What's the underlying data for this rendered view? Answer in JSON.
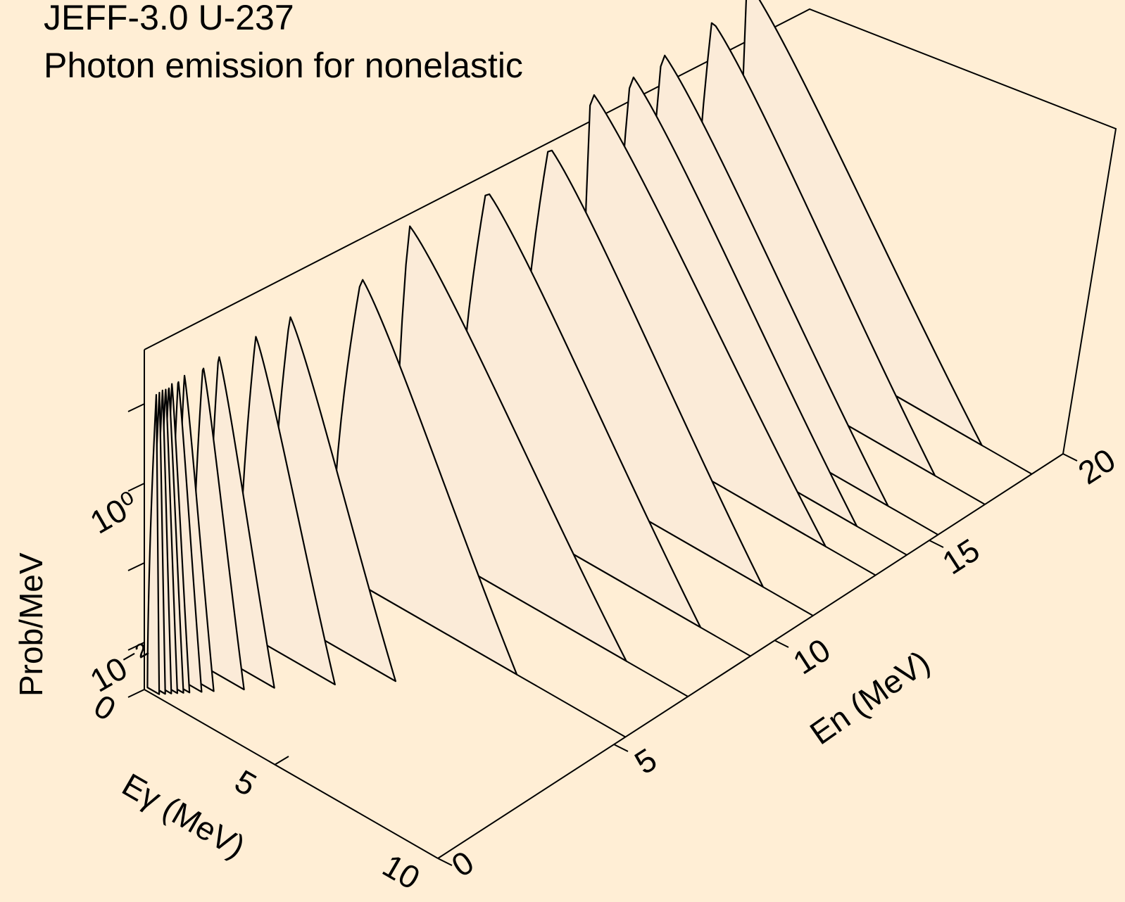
{
  "title_line1": "JEFF-3.0 U-237",
  "title_line2": "Photon emission for nonelastic",
  "colors": {
    "background": "#FFEED5",
    "fill": "#FBEBD8",
    "line": "#000000"
  },
  "chart_data": {
    "type": "3d-waterfall",
    "title": "JEFF-3.0 U-237 Photon emission for nonelastic",
    "x_axis": {
      "label": "Eγ (MeV)",
      "range": [
        0,
        10
      ],
      "ticks": [
        "0",
        "5",
        "10"
      ]
    },
    "y_axis": {
      "label": "En (MeV)",
      "range": [
        0,
        20
      ],
      "ticks": [
        "0",
        "5",
        "10",
        "15",
        "20"
      ]
    },
    "z_axis": {
      "label": "Prob/MeV",
      "scale": "log",
      "ticks": [
        "10⁻²",
        "10⁰"
      ]
    },
    "series": [
      {
        "en": 0.1,
        "peak_egamma": 0.3,
        "max_egamma": 0.4
      },
      {
        "en": 0.2,
        "peak_egamma": 0.3,
        "max_egamma": 0.5
      },
      {
        "en": 0.3,
        "peak_egamma": 0.3,
        "max_egamma": 0.6
      },
      {
        "en": 0.4,
        "peak_egamma": 0.3,
        "max_egamma": 0.7
      },
      {
        "en": 0.5,
        "peak_egamma": 0.3,
        "max_egamma": 0.8
      },
      {
        "en": 0.6,
        "peak_egamma": 0.3,
        "max_egamma": 0.9
      },
      {
        "en": 0.8,
        "peak_egamma": 0.3,
        "max_egamma": 1.1
      },
      {
        "en": 1.0,
        "peak_egamma": 0.3,
        "max_egamma": 1.3
      },
      {
        "en": 1.5,
        "peak_egamma": 0.4,
        "max_egamma": 1.8
      },
      {
        "en": 2.0,
        "peak_egamma": 0.4,
        "max_egamma": 2.3
      },
      {
        "en": 3.0,
        "peak_egamma": 0.6,
        "max_egamma": 3.3
      },
      {
        "en": 4.0,
        "peak_egamma": 0.7,
        "max_egamma": 4.3
      },
      {
        "en": 6.0,
        "peak_egamma": 1.0,
        "max_egamma": 6.3
      },
      {
        "en": 8.0,
        "peak_egamma": 0.5,
        "max_egamma": 7.9
      },
      {
        "en": 10.0,
        "peak_egamma": 1.0,
        "max_egamma": 8.3
      },
      {
        "en": 12.0,
        "peak_egamma": 1.0,
        "max_egamma": 8.3
      },
      {
        "en": 14.0,
        "peak_egamma": 0.3,
        "max_egamma": 8.3
      },
      {
        "en": 15.0,
        "peak_egamma": 0.6,
        "max_egamma": 8.3
      },
      {
        "en": 16.0,
        "peak_egamma": 0.6,
        "max_egamma": 8.3
      },
      {
        "en": 17.5,
        "peak_egamma": 0.7,
        "max_egamma": 8.3
      },
      {
        "en": 19.0,
        "peak_egamma": 0.3,
        "max_egamma": 8.3
      }
    ]
  }
}
